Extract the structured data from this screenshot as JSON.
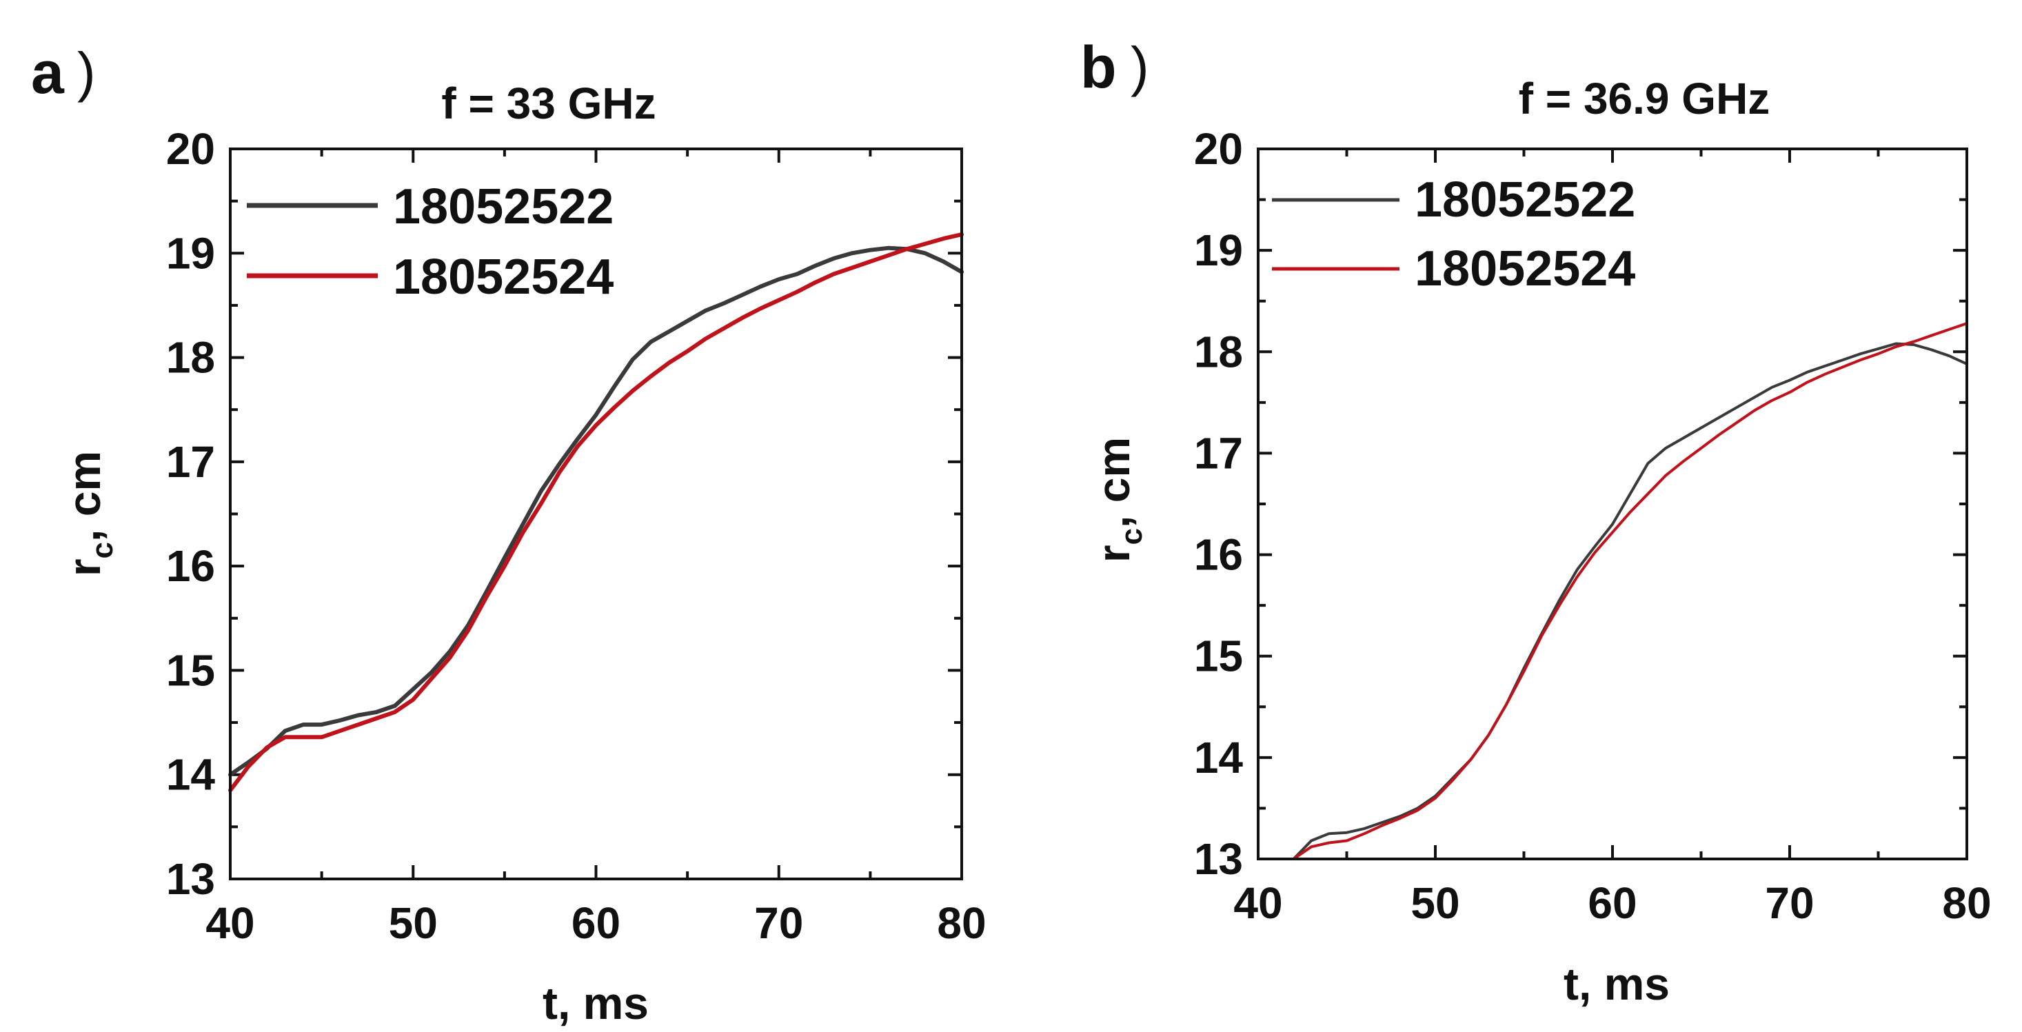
{
  "figure": {
    "panels": [
      "a",
      "b"
    ]
  },
  "colors": {
    "series_18052522": "#3a3a3a",
    "series_18052524": "#c0121a",
    "axes": "#111111"
  },
  "chart_data": [
    {
      "type": "line",
      "panel_label": "a",
      "panel_paren": ")",
      "title": "f = 33 GHz",
      "xlabel": "t, ms",
      "ylabel_main": "r",
      "ylabel_sub": "c",
      "ylabel_rest": ", cm",
      "xlim": [
        40,
        80
      ],
      "ylim": [
        13,
        20
      ],
      "xticks": [
        40,
        50,
        60,
        70,
        80
      ],
      "yticks": [
        13,
        14,
        15,
        16,
        17,
        18,
        19,
        20
      ],
      "legend_position": "top-left",
      "series": [
        {
          "name": "18052522",
          "color": "#3a3a3a",
          "x": [
            40,
            41,
            42,
            43,
            44,
            45,
            46,
            47,
            48,
            49,
            50,
            51,
            52,
            53,
            54,
            55,
            56,
            57,
            58,
            59,
            60,
            61,
            62,
            63,
            64,
            65,
            66,
            67,
            68,
            69,
            70,
            71,
            72,
            73,
            74,
            75,
            76,
            77,
            78,
            79,
            80
          ],
          "values": [
            14.0,
            14.12,
            14.25,
            14.42,
            14.48,
            14.48,
            14.52,
            14.57,
            14.6,
            14.66,
            14.82,
            14.98,
            15.18,
            15.43,
            15.75,
            16.08,
            16.4,
            16.72,
            16.98,
            17.22,
            17.45,
            17.72,
            17.98,
            18.15,
            18.25,
            18.35,
            18.45,
            18.52,
            18.6,
            18.68,
            18.75,
            18.8,
            18.88,
            18.95,
            19.0,
            19.03,
            19.05,
            19.04,
            19.0,
            18.92,
            18.82
          ]
        },
        {
          "name": "18052524",
          "color": "#c0121a",
          "x": [
            40,
            41,
            42,
            43,
            44,
            45,
            46,
            47,
            48,
            49,
            50,
            51,
            52,
            53,
            54,
            55,
            56,
            57,
            58,
            59,
            60,
            61,
            62,
            63,
            64,
            65,
            66,
            67,
            68,
            69,
            70,
            71,
            72,
            73,
            74,
            75,
            76,
            77,
            78,
            79,
            80
          ],
          "values": [
            13.85,
            14.08,
            14.26,
            14.36,
            14.36,
            14.36,
            14.42,
            14.48,
            14.54,
            14.6,
            14.72,
            14.92,
            15.12,
            15.38,
            15.7,
            16.0,
            16.32,
            16.6,
            16.9,
            17.15,
            17.35,
            17.52,
            17.68,
            17.82,
            17.95,
            18.06,
            18.18,
            18.28,
            18.38,
            18.47,
            18.55,
            18.63,
            18.72,
            18.8,
            18.86,
            18.92,
            18.98,
            19.04,
            19.09,
            19.14,
            19.18
          ]
        }
      ]
    },
    {
      "type": "line",
      "panel_label": "b",
      "panel_paren": ")",
      "title": "f = 36.9 GHz",
      "xlabel": "t, ms",
      "ylabel_main": "r",
      "ylabel_sub": "c",
      "ylabel_rest": ", cm",
      "xlim": [
        40,
        80
      ],
      "ylim": [
        13,
        20
      ],
      "xticks": [
        40,
        50,
        60,
        70,
        80
      ],
      "yticks": [
        13,
        14,
        15,
        16,
        17,
        18,
        19,
        20
      ],
      "legend_position": "top-left",
      "series": [
        {
          "name": "18052522",
          "color": "#3a3a3a",
          "x": [
            42,
            43,
            44,
            45,
            46,
            47,
            48,
            49,
            50,
            51,
            52,
            53,
            54,
            55,
            56,
            57,
            58,
            59,
            60,
            61,
            62,
            63,
            64,
            65,
            66,
            67,
            68,
            69,
            70,
            71,
            72,
            73,
            74,
            75,
            76,
            77,
            78,
            79,
            80
          ],
          "values": [
            13.0,
            13.18,
            13.25,
            13.26,
            13.3,
            13.36,
            13.42,
            13.5,
            13.62,
            13.8,
            13.98,
            14.22,
            14.52,
            14.88,
            15.22,
            15.55,
            15.85,
            16.08,
            16.3,
            16.6,
            16.9,
            17.05,
            17.15,
            17.25,
            17.35,
            17.45,
            17.55,
            17.65,
            17.72,
            17.8,
            17.86,
            17.92,
            17.98,
            18.03,
            18.08,
            18.07,
            18.02,
            17.96,
            17.88
          ]
        },
        {
          "name": "18052524",
          "color": "#c0121a",
          "x": [
            42,
            43,
            44,
            45,
            46,
            47,
            48,
            49,
            50,
            51,
            52,
            53,
            54,
            55,
            56,
            57,
            58,
            59,
            60,
            61,
            62,
            63,
            64,
            65,
            66,
            67,
            68,
            69,
            70,
            71,
            72,
            73,
            74,
            75,
            76,
            77,
            78,
            79,
            80
          ],
          "values": [
            13.0,
            13.12,
            13.16,
            13.18,
            13.25,
            13.33,
            13.4,
            13.48,
            13.6,
            13.78,
            13.98,
            14.22,
            14.52,
            14.85,
            15.2,
            15.5,
            15.78,
            16.02,
            16.22,
            16.42,
            16.6,
            16.78,
            16.92,
            17.05,
            17.18,
            17.3,
            17.42,
            17.52,
            17.6,
            17.7,
            17.78,
            17.85,
            17.92,
            17.98,
            18.05,
            18.1,
            18.16,
            18.22,
            18.28
          ]
        }
      ]
    }
  ]
}
